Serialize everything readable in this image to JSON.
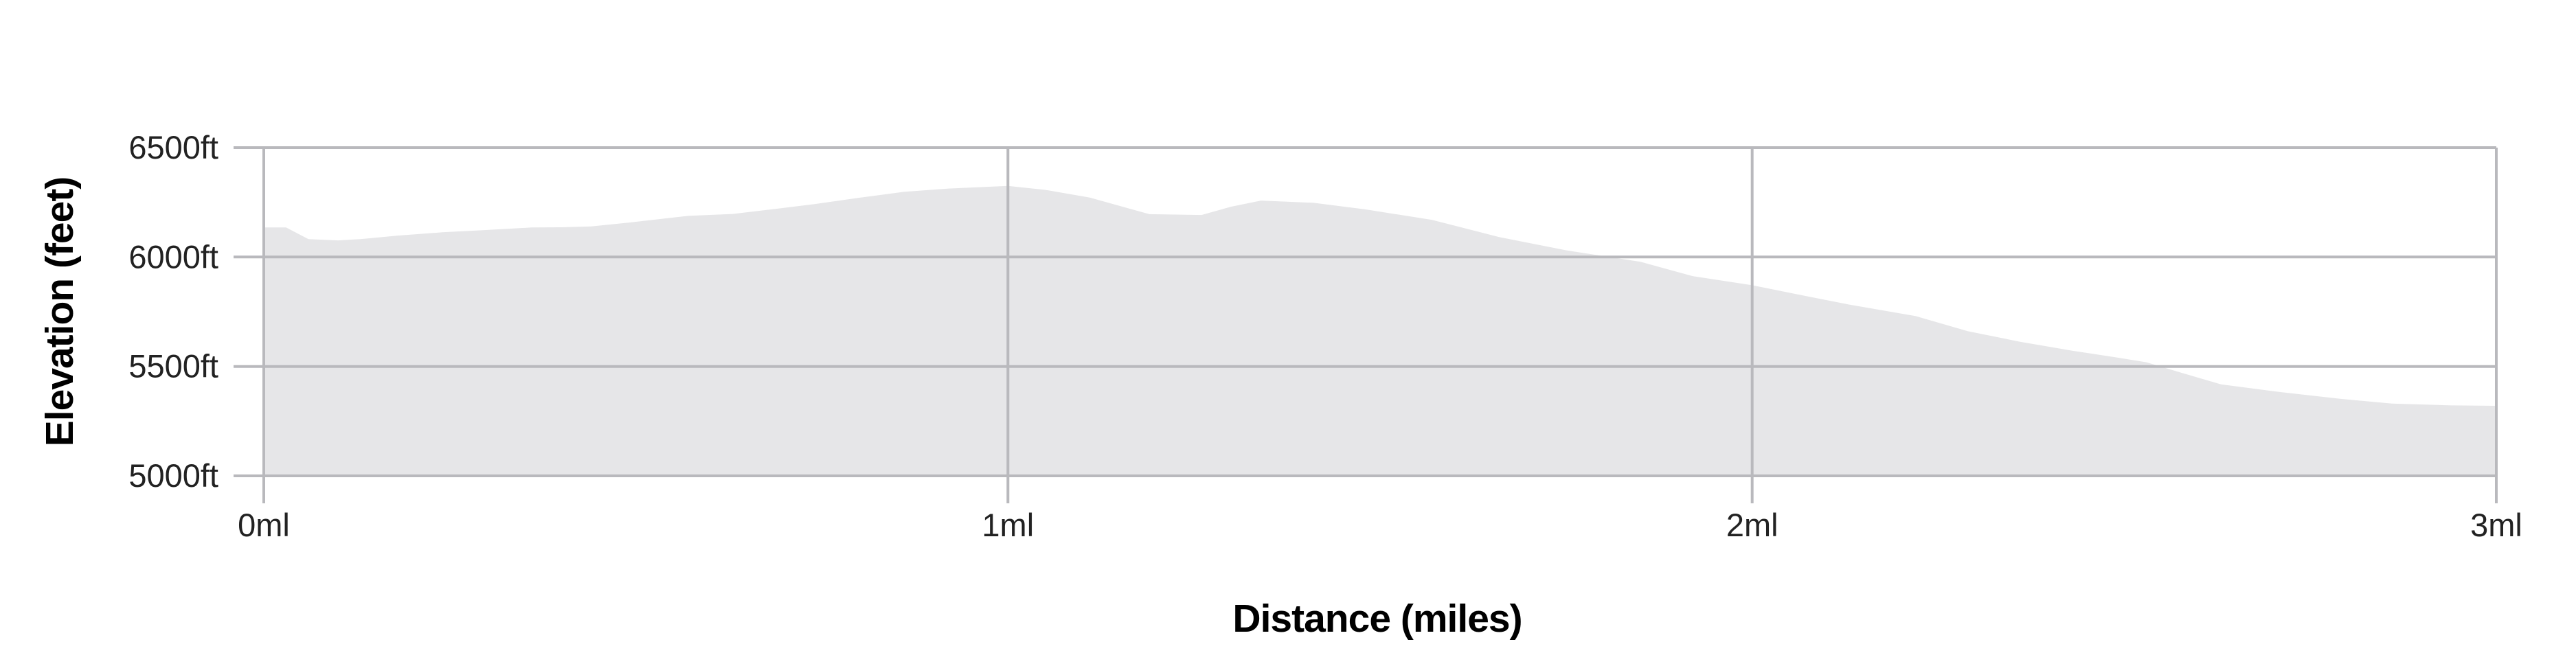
{
  "page": {
    "background": "#ffffff"
  },
  "chart_data": {
    "type": "area",
    "title": "",
    "xlabel": "Distance (miles)",
    "ylabel": "Elevation (feet)",
    "xlim": [
      0,
      3
    ],
    "ylim": [
      5000,
      6500
    ],
    "grid": true,
    "legend": false,
    "x_unit": "ml",
    "y_unit": "ft",
    "x_ticks": [
      {
        "value": 0,
        "label": "0ml"
      },
      {
        "value": 1,
        "label": "1ml"
      },
      {
        "value": 2,
        "label": "2ml"
      },
      {
        "value": 3,
        "label": "3ml"
      }
    ],
    "y_ticks": [
      {
        "value": 6500,
        "label": "6500ft"
      },
      {
        "value": 6000,
        "label": "6000ft"
      },
      {
        "value": 5500,
        "label": "5500ft"
      },
      {
        "value": 5000,
        "label": "5000ft"
      }
    ],
    "points_format": [
      "miles",
      "feet"
    ],
    "points": [
      [
        0.0,
        6135
      ],
      [
        0.03,
        6135
      ],
      [
        0.06,
        6082
      ],
      [
        0.1,
        6076
      ],
      [
        0.13,
        6082
      ],
      [
        0.18,
        6098
      ],
      [
        0.24,
        6113
      ],
      [
        0.29,
        6122
      ],
      [
        0.36,
        6135
      ],
      [
        0.4,
        6136
      ],
      [
        0.44,
        6140
      ],
      [
        0.49,
        6157
      ],
      [
        0.57,
        6188
      ],
      [
        0.63,
        6197
      ],
      [
        0.7,
        6225
      ],
      [
        0.74,
        6242
      ],
      [
        0.8,
        6271
      ],
      [
        0.86,
        6298
      ],
      [
        0.92,
        6313
      ],
      [
        1.0,
        6325
      ],
      [
        1.05,
        6307
      ],
      [
        1.11,
        6272
      ],
      [
        1.19,
        6196
      ],
      [
        1.26,
        6192
      ],
      [
        1.3,
        6230
      ],
      [
        1.34,
        6258
      ],
      [
        1.41,
        6248
      ],
      [
        1.48,
        6218
      ],
      [
        1.57,
        6170
      ],
      [
        1.66,
        6091
      ],
      [
        1.75,
        6031
      ],
      [
        1.85,
        5978
      ],
      [
        1.92,
        5913
      ],
      [
        2.0,
        5871
      ],
      [
        2.06,
        5830
      ],
      [
        2.13,
        5783
      ],
      [
        2.22,
        5730
      ],
      [
        2.29,
        5661
      ],
      [
        2.36,
        5613
      ],
      [
        2.43,
        5572
      ],
      [
        2.49,
        5541
      ],
      [
        2.53,
        5519
      ],
      [
        2.58,
        5468
      ],
      [
        2.63,
        5418
      ],
      [
        2.71,
        5383
      ],
      [
        2.79,
        5352
      ],
      [
        2.86,
        5330
      ],
      [
        2.94,
        5322
      ],
      [
        3.0,
        5320
      ]
    ],
    "colors": {
      "area_fill": "#e6e6e8",
      "grid_line": "#b9b9bd",
      "axis_line": "#b9b9bd",
      "tick_text": "#222222",
      "title_text": "#000000",
      "background": "#ffffff"
    }
  }
}
